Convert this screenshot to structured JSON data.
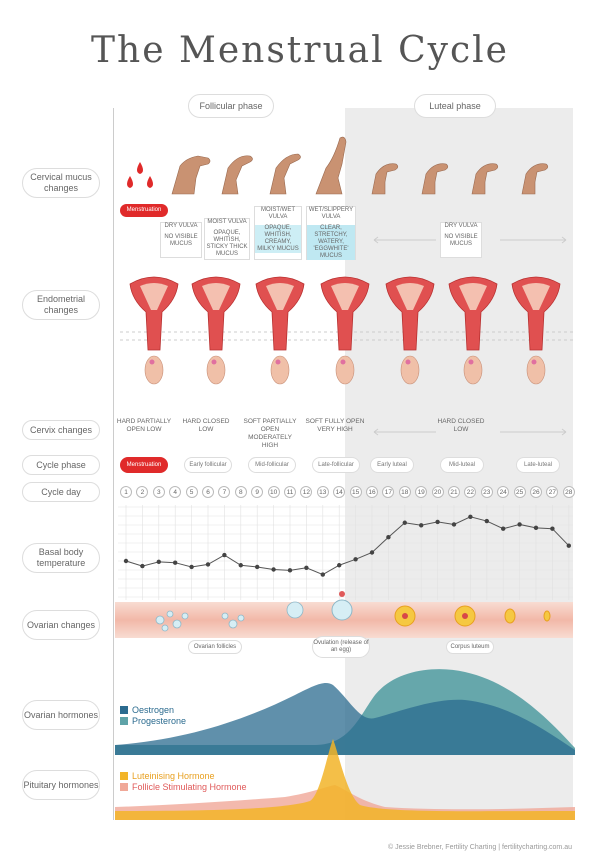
{
  "title": "The Menstrual Cycle",
  "phases": {
    "follicular": "Follicular phase",
    "luteal": "Luteal phase"
  },
  "row_labels": {
    "mucus": "Cervical mucus changes",
    "endometrial": "Endometrial changes",
    "cervix": "Cervix changes",
    "cycle_phase": "Cycle phase",
    "cycle_day": "Cycle day",
    "bbt": "Basal body temperature",
    "ovarian": "Ovarian changes",
    "ov_hormones": "Ovarian hormones",
    "pit_hormones": "Pituitary hormones"
  },
  "mucus": {
    "menstruation": "Menstruation",
    "dry1_title": "DRY VULVA",
    "dry1_desc": "NO VISIBLE MUCUS",
    "moist_title": "MOIST VULVA",
    "moist_desc": "OPAQUE, WHITISH, STICKY THICK MUCUS",
    "moistwet_title": "MOIST/WET VULVA",
    "moistwet_desc": "OPAQUE, WHITISH, CREAMY, MILKY MUCUS",
    "wet_title": "WET/SLIPPERY VULVA",
    "wet_desc": "CLEAR, STRETCHY, WATERY, 'EGGWHITE' MUCUS",
    "dry2_title": "DRY VULVA",
    "dry2_desc": "NO VISIBLE MUCUS"
  },
  "cervix": {
    "c1": "HARD PARTIALLY OPEN LOW",
    "c2": "HARD CLOSED LOW",
    "c3": "SOFT PARTIALLY OPEN MODERATELY HIGH",
    "c4": "SOFT FULLY OPEN VERY HIGH",
    "c5": "HARD CLOSED LOW"
  },
  "cycle_phases": [
    "Menstruation",
    "Early follicular",
    "Mid-follicular",
    "Late-follicular",
    "Early luteal",
    "Mid-luteal",
    "Late-luteal"
  ],
  "days": [
    "1",
    "2",
    "3",
    "4",
    "5",
    "6",
    "7",
    "8",
    "9",
    "10",
    "11",
    "12",
    "13",
    "14",
    "15",
    "16",
    "17",
    "18",
    "19",
    "20",
    "21",
    "22",
    "23",
    "24",
    "25",
    "26",
    "27",
    "28"
  ],
  "bbt_values": [
    4.0,
    3.4,
    3.9,
    3.8,
    3.3,
    3.6,
    4.7,
    3.5,
    3.3,
    3.0,
    2.9,
    3.2,
    2.4,
    3.5,
    4.2,
    5.0,
    6.8,
    8.5,
    8.2,
    8.6,
    8.3,
    9.2,
    8.7,
    7.8,
    8.3,
    7.9,
    7.8,
    5.8
  ],
  "ovarian": {
    "follicles": "Ovarian follicles",
    "ovulation": "Ovulation (release of an egg)",
    "corpus": "Corpus luteum"
  },
  "hormones": {
    "oestrogen": "Oestrogen",
    "progesterone": "Progesterone",
    "lh": "Luteinising Hormone",
    "fsh": "Follicle Stimulating Hormone"
  },
  "colors": {
    "oestrogen": "#2b6b8f",
    "progesterone": "#5fa3a8",
    "lh": "#f2b428",
    "fsh": "#f0a898",
    "menstruation": "#e02a2a",
    "luteal_bg": "#ececec"
  },
  "credit": "© Jessie Brebner, Fertility Charting | fertilitycharting.com.au"
}
